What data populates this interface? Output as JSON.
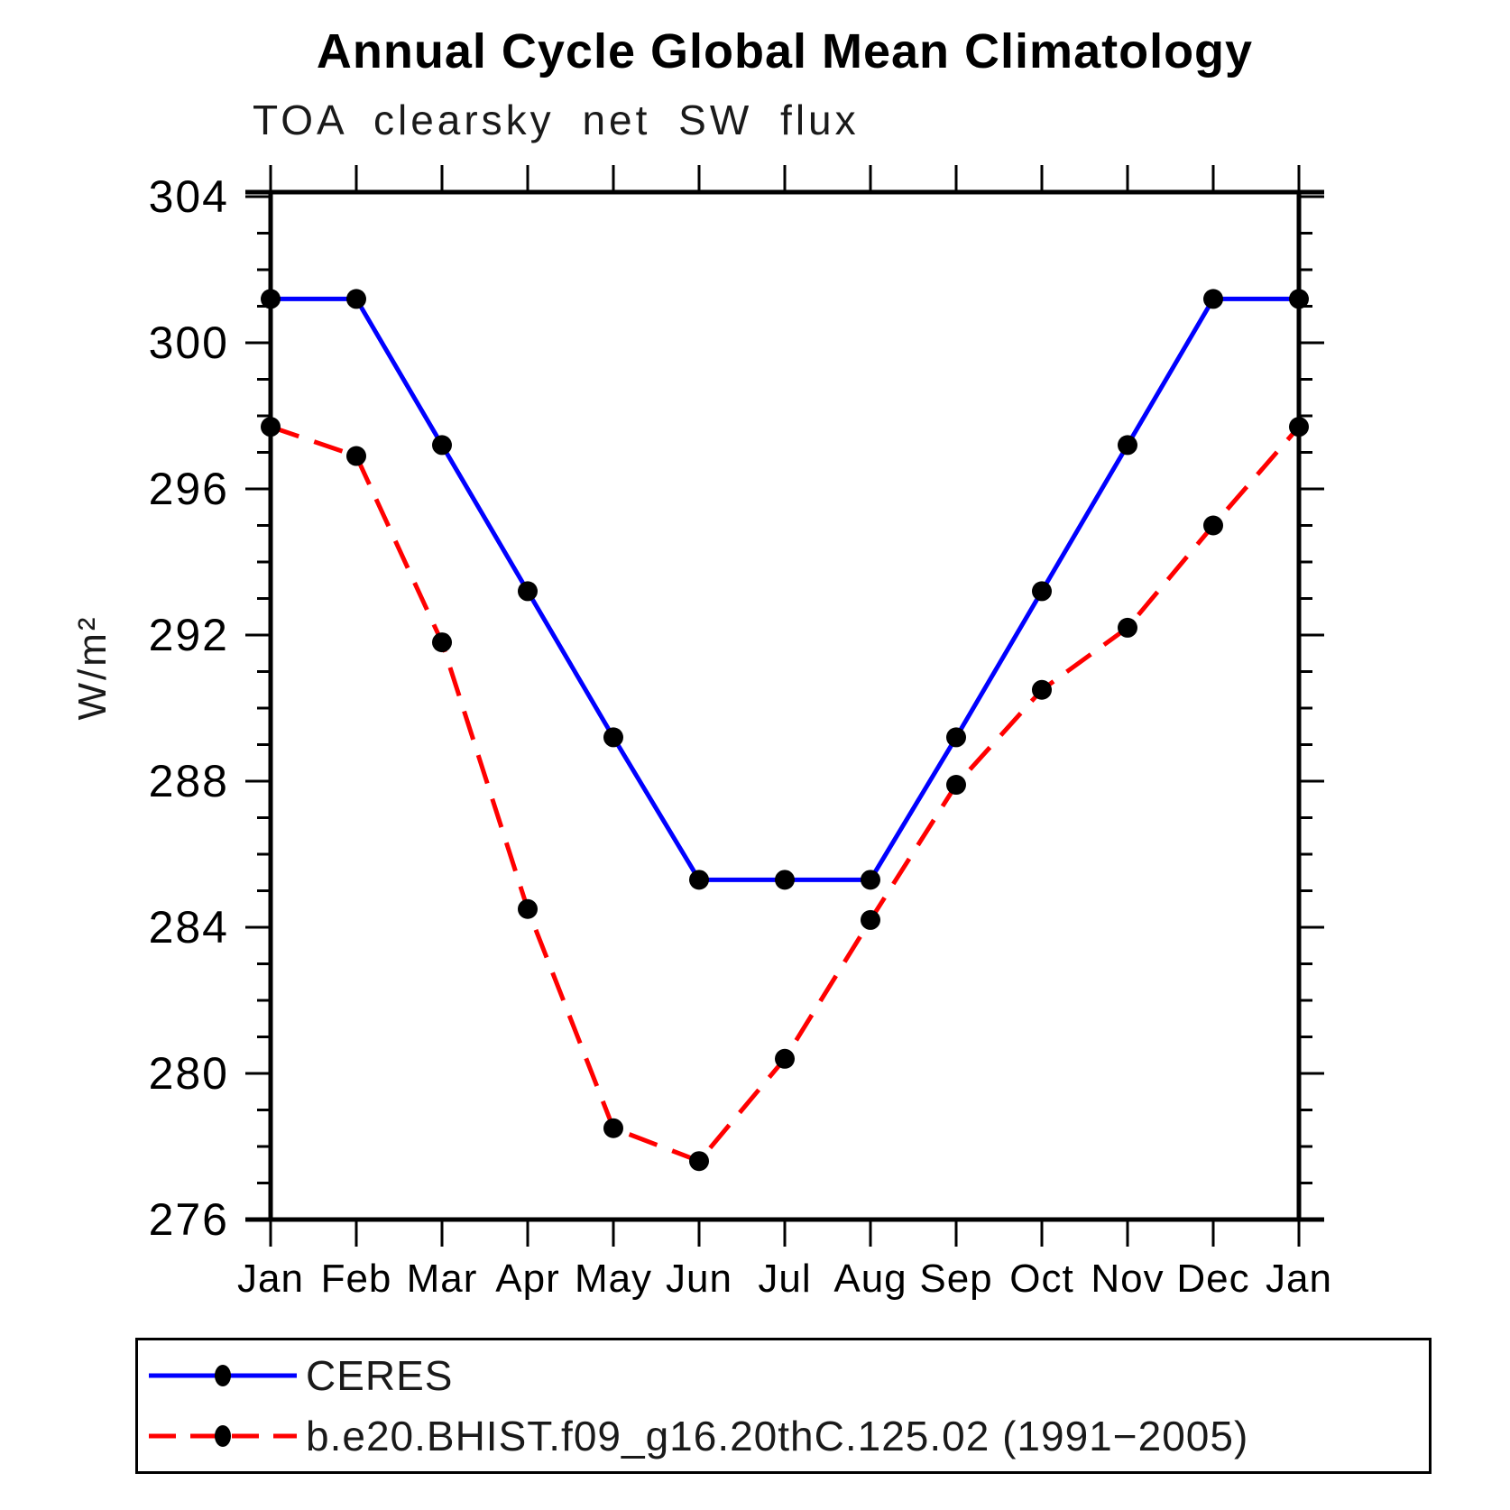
{
  "header": {
    "title": "Annual Cycle Global Mean Climatology",
    "subtitle": "TOA clearsky net SW flux"
  },
  "chart_data": {
    "type": "line",
    "title": "Annual Cycle Global Mean Climatology",
    "subtitle": "TOA clearsky net SW flux",
    "xlabel": "",
    "ylabel": "W/m²",
    "x_categories": [
      "Jan",
      "Feb",
      "Mar",
      "Apr",
      "May",
      "Jun",
      "Jul",
      "Aug",
      "Sep",
      "Oct",
      "Nov",
      "Dec",
      "Jan"
    ],
    "ylim": [
      276,
      304
    ],
    "y_major_ticks": [
      276,
      280,
      284,
      288,
      292,
      296,
      300,
      304
    ],
    "y_minor_step": 1,
    "grid": false,
    "legend_position": "bottom-left-box",
    "axis_color": "#000000",
    "marker_color": "#000000",
    "series": [
      {
        "name": "CERES",
        "color": "#0000ff",
        "style": "solid",
        "marker": "circle",
        "values": [
          301.2,
          301.2,
          297.2,
          293.2,
          289.2,
          285.3,
          285.3,
          285.3,
          289.2,
          293.2,
          297.2,
          301.2,
          301.2
        ]
      },
      {
        "name": "b.e20.BHIST.f09_g16.20thC.125.02 (1991−2005)",
        "color": "#ff0000",
        "style": "dashed",
        "marker": "circle",
        "values": [
          297.7,
          296.9,
          291.8,
          284.5,
          278.5,
          277.6,
          280.4,
          284.2,
          287.9,
          290.5,
          292.2,
          295.0,
          297.7
        ]
      }
    ]
  }
}
